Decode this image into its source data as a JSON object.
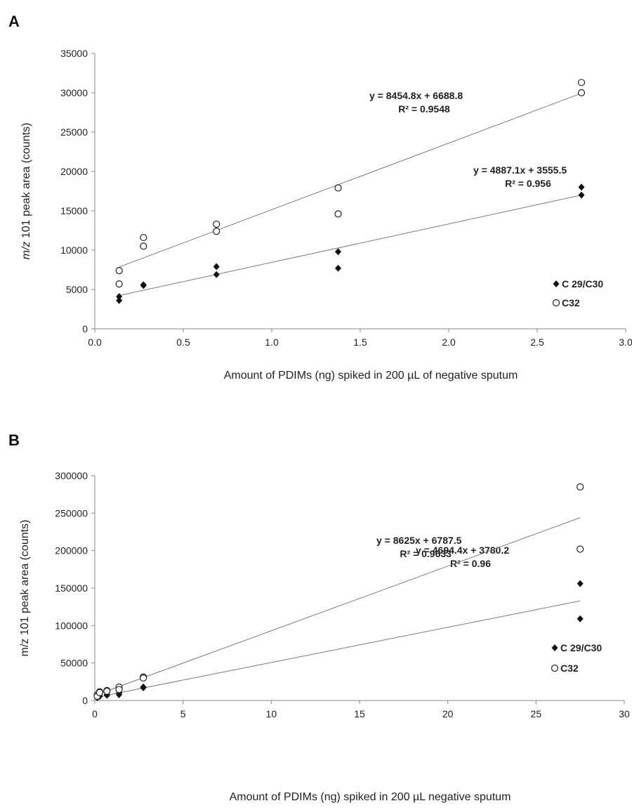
{
  "chart_data": [
    {
      "type": "scatter",
      "panel_label": "A",
      "title": "",
      "xlabel": "Amount of PDIMs (ng) spiked in 200 µL of negative sputum",
      "ylabel_italic": "m/z",
      "ylabel_rest": " 101 peak area (counts)",
      "xlim": [
        0,
        3
      ],
      "ylim": [
        0,
        35000
      ],
      "x_ticks": [
        "0.0",
        "0.5",
        "1.0",
        "1.5",
        "2.0",
        "2.5",
        "3.0"
      ],
      "y_ticks": [
        "0",
        "5000",
        "10000",
        "15000",
        "20000",
        "25000",
        "30000",
        "35000"
      ],
      "grid": false,
      "legend_position": "bottom-right",
      "series": [
        {
          "name": "C 29/C30",
          "marker": "filled-diamond",
          "points": [
            [
              0.1375,
              4100
            ],
            [
              0.1375,
              3600
            ],
            [
              0.275,
              5600
            ],
            [
              0.275,
              5500
            ],
            [
              0.6875,
              7900
            ],
            [
              0.6875,
              6900
            ],
            [
              1.375,
              9800
            ],
            [
              1.375,
              7700
            ],
            [
              2.75,
              18000
            ],
            [
              2.75,
              17000
            ]
          ],
          "fit": {
            "slope": 4887.1,
            "intercept": 3555.5
          },
          "equation": "y = 4887.1x + 3555.5",
          "r2": "R² = 0.956"
        },
        {
          "name": "C32",
          "marker": "open-circle",
          "points": [
            [
              0.1375,
              7400
            ],
            [
              0.1375,
              5700
            ],
            [
              0.275,
              11600
            ],
            [
              0.275,
              10500
            ],
            [
              0.6875,
              13300
            ],
            [
              0.6875,
              12400
            ],
            [
              1.375,
              17900
            ],
            [
              1.375,
              14600
            ],
            [
              2.75,
              31300
            ],
            [
              2.75,
              30000
            ]
          ],
          "fit": {
            "slope": 8454.8,
            "intercept": 6688.8
          },
          "equation": "y = 8454.8x + 6688.8",
          "r2": "R² = 0.9548"
        }
      ]
    },
    {
      "type": "scatter",
      "panel_label": "B",
      "title": "",
      "xlabel": "Amount of PDIMs (ng) spiked in 200 µL negative sputum",
      "ylabel_italic": "",
      "ylabel_rest": "m/z 101 peak area (counts)",
      "xlim": [
        0,
        30
      ],
      "ylim": [
        0,
        300000
      ],
      "x_ticks": [
        "0",
        "5",
        "10",
        "15",
        "20",
        "25",
        "30"
      ],
      "y_ticks": [
        "0",
        "50000",
        "100000",
        "150000",
        "200000",
        "250000",
        "300000"
      ],
      "grid": false,
      "legend_position": "bottom-right",
      "series": [
        {
          "name": "C 29/C30",
          "marker": "filled-diamond",
          "points": [
            [
              0.1375,
              4100
            ],
            [
              0.1375,
              3600
            ],
            [
              0.275,
              5600
            ],
            [
              0.275,
              5500
            ],
            [
              0.6875,
              7900
            ],
            [
              0.6875,
              6900
            ],
            [
              1.375,
              9800
            ],
            [
              1.375,
              7700
            ],
            [
              2.75,
              18000
            ],
            [
              2.75,
              17000
            ],
            [
              27.5,
              156000
            ],
            [
              27.5,
              109000
            ]
          ],
          "fit": {
            "slope": 4694.4,
            "intercept": 3780.2
          },
          "equation": "y = 4694.4x + 3780.2",
          "r2": "R² = 0.96"
        },
        {
          "name": "C32",
          "marker": "open-circle",
          "points": [
            [
              0.1375,
              7400
            ],
            [
              0.1375,
              5700
            ],
            [
              0.275,
              11600
            ],
            [
              0.275,
              10500
            ],
            [
              0.6875,
              13300
            ],
            [
              0.6875,
              12400
            ],
            [
              1.375,
              17900
            ],
            [
              1.375,
              14600
            ],
            [
              2.75,
              31300
            ],
            [
              2.75,
              30000
            ],
            [
              27.5,
              285000
            ],
            [
              27.5,
              202000
            ]
          ],
          "fit": {
            "slope": 8625,
            "intercept": 6787.5
          },
          "equation": "y = 8625x + 6787.5",
          "r2": "R² = 0.9633"
        }
      ]
    }
  ]
}
